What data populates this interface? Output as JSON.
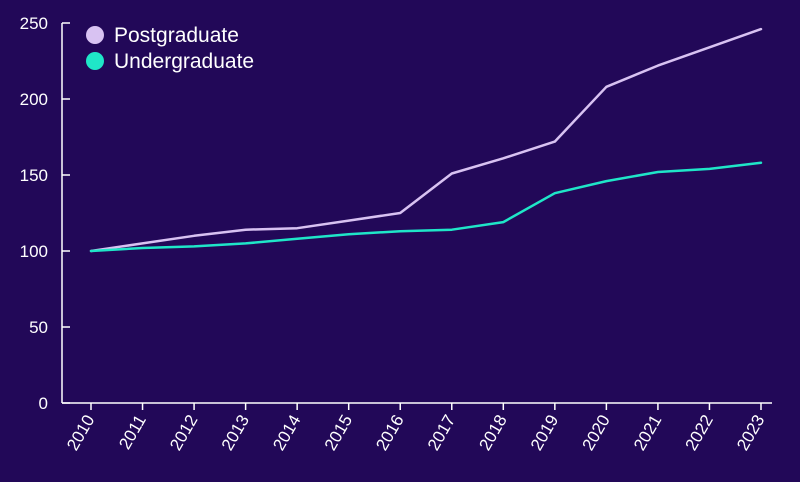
{
  "chart_data": {
    "type": "line",
    "title": "",
    "xlabel": "",
    "ylabel": "",
    "x": [
      "2010",
      "2011",
      "2012",
      "2013",
      "2014",
      "2015",
      "2016",
      "2017",
      "2018",
      "2019",
      "2020",
      "2021",
      "2022",
      "2023"
    ],
    "ylim": [
      0,
      250
    ],
    "yticks": [
      0,
      50,
      100,
      150,
      200,
      250
    ],
    "grid": false,
    "legend_position": "top-left",
    "background_color": "#220858",
    "axis_color": "#ffffff",
    "series": [
      {
        "name": "Postgraduate",
        "color": "#d8c2f2",
        "values": [
          100,
          105,
          110,
          114,
          115,
          120,
          125,
          151,
          161,
          172,
          208,
          222,
          234,
          246
        ]
      },
      {
        "name": "Undergraduate",
        "color": "#1fe6c8",
        "values": [
          100,
          102,
          103,
          105,
          108,
          111,
          113,
          114,
          119,
          138,
          146,
          152,
          154,
          158
        ]
      }
    ]
  }
}
